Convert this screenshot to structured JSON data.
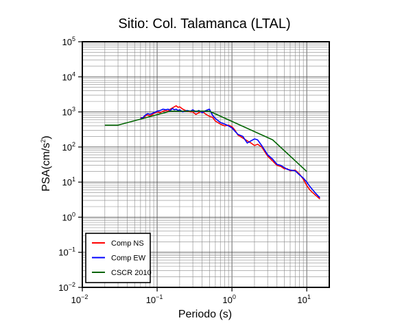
{
  "chart_data": {
    "type": "line",
    "title": "Sitio: Col. Talamanca (LTAL)",
    "xlabel": "Periodo (s)",
    "ylabel_main": "PSA(cm/s",
    "ylabel_sup": "2",
    "ylabel_end": ")",
    "x_scale": "log",
    "y_scale": "log",
    "xlim": [
      0.01,
      20
    ],
    "ylim": [
      0.01,
      100000
    ],
    "grid": true,
    "x_ticks": [
      {
        "value": 0.01,
        "base": "10",
        "exp": "−2"
      },
      {
        "value": 0.1,
        "base": "10",
        "exp": "−1"
      },
      {
        "value": 1,
        "base": "10",
        "exp": "0"
      },
      {
        "value": 10,
        "base": "10",
        "exp": "1"
      }
    ],
    "y_ticks": [
      {
        "value": 0.01,
        "base": "10",
        "exp": "−2"
      },
      {
        "value": 0.1,
        "base": "10",
        "exp": "−1"
      },
      {
        "value": 1,
        "base": "10",
        "exp": "0"
      },
      {
        "value": 10,
        "base": "10",
        "exp": "1"
      },
      {
        "value": 100,
        "base": "10",
        "exp": "2"
      },
      {
        "value": 1000,
        "base": "10",
        "exp": "3"
      },
      {
        "value": 10000,
        "base": "10",
        "exp": "4"
      },
      {
        "value": 100000,
        "base": "10",
        "exp": "5"
      }
    ],
    "legend_position": "bottom-left",
    "series": [
      {
        "name": "Comp NS",
        "color": "#ff0000",
        "points": [
          [
            0.06,
            700
          ],
          [
            0.065,
            650
          ],
          [
            0.07,
            780
          ],
          [
            0.075,
            820
          ],
          [
            0.08,
            760
          ],
          [
            0.09,
            900
          ],
          [
            0.1,
            1000
          ],
          [
            0.11,
            950
          ],
          [
            0.12,
            1050
          ],
          [
            0.13,
            1100
          ],
          [
            0.14,
            1050
          ],
          [
            0.15,
            1200
          ],
          [
            0.16,
            1300
          ],
          [
            0.17,
            1400
          ],
          [
            0.18,
            1500
          ],
          [
            0.19,
            1350
          ],
          [
            0.2,
            1400
          ],
          [
            0.22,
            1200
          ],
          [
            0.25,
            1050
          ],
          [
            0.28,
            1000
          ],
          [
            0.3,
            1000
          ],
          [
            0.33,
            850
          ],
          [
            0.36,
            950
          ],
          [
            0.4,
            1050
          ],
          [
            0.45,
            850
          ],
          [
            0.5,
            750
          ],
          [
            0.55,
            700
          ],
          [
            0.6,
            550
          ],
          [
            0.7,
            450
          ],
          [
            0.8,
            400
          ],
          [
            0.9,
            420
          ],
          [
            1.0,
            380
          ],
          [
            1.1,
            300
          ],
          [
            1.2,
            220
          ],
          [
            1.4,
            180
          ],
          [
            1.6,
            150
          ],
          [
            1.8,
            130
          ],
          [
            2.0,
            110
          ],
          [
            2.2,
            120
          ],
          [
            2.5,
            100
          ],
          [
            3.0,
            55
          ],
          [
            3.5,
            40
          ],
          [
            4.0,
            30
          ],
          [
            4.5,
            28
          ],
          [
            5.0,
            24
          ],
          [
            5.5,
            24
          ],
          [
            6.0,
            21
          ],
          [
            7.0,
            22
          ],
          [
            8.0,
            17
          ],
          [
            9.0,
            12
          ],
          [
            10,
            8
          ],
          [
            11,
            6
          ],
          [
            12,
            5
          ],
          [
            13.5,
            4
          ],
          [
            15,
            3.3
          ]
        ]
      },
      {
        "name": "Comp EW",
        "color": "#0000ff",
        "points": [
          [
            0.06,
            650
          ],
          [
            0.065,
            700
          ],
          [
            0.07,
            820
          ],
          [
            0.075,
            900
          ],
          [
            0.08,
            850
          ],
          [
            0.09,
            950
          ],
          [
            0.1,
            1050
          ],
          [
            0.11,
            1100
          ],
          [
            0.12,
            1200
          ],
          [
            0.13,
            1150
          ],
          [
            0.14,
            1200
          ],
          [
            0.15,
            1100
          ],
          [
            0.16,
            1250
          ],
          [
            0.17,
            1150
          ],
          [
            0.18,
            1200
          ],
          [
            0.19,
            1100
          ],
          [
            0.2,
            1150
          ],
          [
            0.22,
            1000
          ],
          [
            0.25,
            1100
          ],
          [
            0.28,
            1050
          ],
          [
            0.3,
            1150
          ],
          [
            0.33,
            1000
          ],
          [
            0.36,
            1100
          ],
          [
            0.4,
            950
          ],
          [
            0.45,
            1100
          ],
          [
            0.5,
            1200
          ],
          [
            0.55,
            800
          ],
          [
            0.6,
            650
          ],
          [
            0.7,
            500
          ],
          [
            0.8,
            450
          ],
          [
            0.9,
            400
          ],
          [
            1.0,
            350
          ],
          [
            1.1,
            280
          ],
          [
            1.2,
            230
          ],
          [
            1.4,
            200
          ],
          [
            1.6,
            130
          ],
          [
            1.8,
            150
          ],
          [
            2.0,
            170
          ],
          [
            2.2,
            160
          ],
          [
            2.5,
            110
          ],
          [
            3.0,
            60
          ],
          [
            3.5,
            45
          ],
          [
            4.0,
            32
          ],
          [
            4.5,
            30
          ],
          [
            5.0,
            26
          ],
          [
            5.5,
            23
          ],
          [
            6.0,
            22
          ],
          [
            7.0,
            21
          ],
          [
            8.0,
            16
          ],
          [
            9.0,
            13
          ],
          [
            10,
            10
          ],
          [
            11,
            7.5
          ],
          [
            12,
            6
          ],
          [
            13.5,
            4.5
          ],
          [
            15,
            3.6
          ]
        ]
      },
      {
        "name": "CSCR 2010",
        "color": "#006400",
        "points": [
          [
            0.02,
            420
          ],
          [
            0.03,
            420
          ],
          [
            0.15,
            1050
          ],
          [
            0.5,
            1050
          ],
          [
            3.5,
            160
          ],
          [
            10,
            20
          ]
        ]
      }
    ]
  }
}
